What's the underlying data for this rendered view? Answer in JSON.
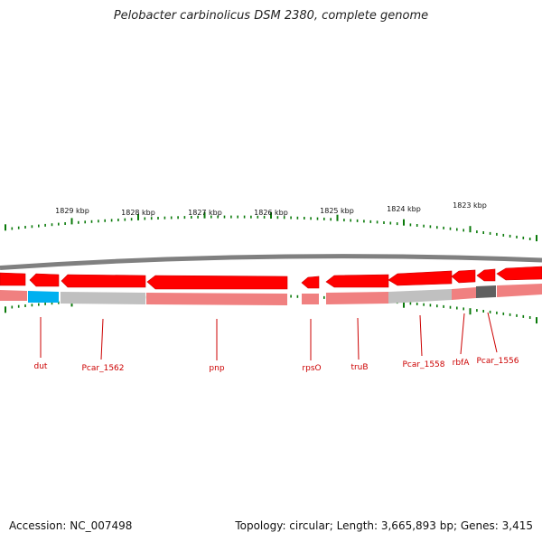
{
  "title": "Pelobacter carbinolicus DSM 2380, complete genome",
  "accession_label": "Accession: NC_007498",
  "topology": {
    "topology_label": "Topology: circular;",
    "length_label": "Length: 3,665,893 bp;",
    "genes_label": "Genes: 3,415"
  },
  "colors": {
    "backbone": "#808080",
    "gene_red": "#ff0000",
    "gene_red_edge": "#cc0000",
    "feature_pink": "#f08080",
    "feature_gray": "#c0c0c0",
    "feature_cyan": "#00b0f0",
    "feature_dark": "#606060",
    "tick_green": "#0a7a0a",
    "label_red": "#cc0000"
  },
  "kbp_ticks": [
    {
      "label": "1829 kbp"
    },
    {
      "label": "1828 kbp"
    },
    {
      "label": "1827 kbp"
    },
    {
      "label": "1826 kbp"
    },
    {
      "label": "1825 kbp"
    },
    {
      "label": "1824 kbp"
    },
    {
      "label": "1823 kbp"
    }
  ],
  "genes": [
    {
      "name": "dut"
    },
    {
      "name": "Pcar_1562"
    },
    {
      "name": "pnp"
    },
    {
      "name": "rpsO"
    },
    {
      "name": "truB"
    },
    {
      "name": "Pcar_1558"
    },
    {
      "name": "rbfA"
    },
    {
      "name": "Pcar_1556"
    }
  ]
}
